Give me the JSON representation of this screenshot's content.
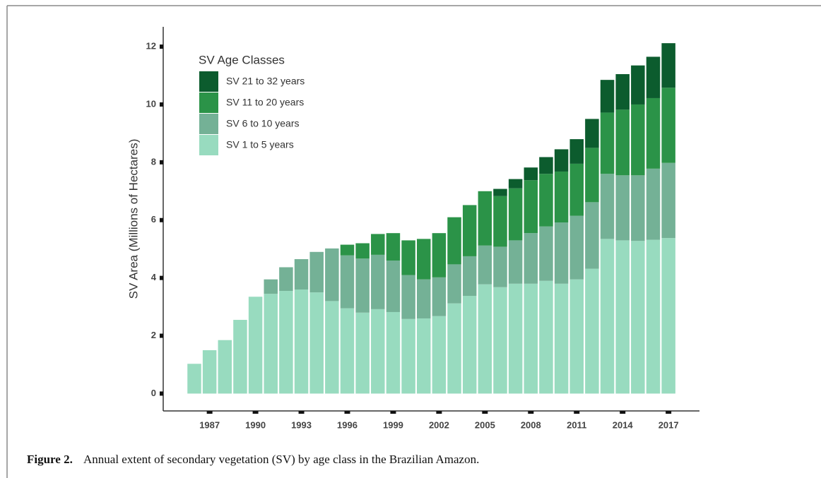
{
  "chart_data": {
    "type": "stacked_bar",
    "y_label": "SV Area (Millions of Hectares)",
    "legend_title": "SV Age Classes",
    "categories": [
      null,
      "1987",
      null,
      null,
      "1990",
      null,
      null,
      "1993",
      null,
      null,
      "1996",
      null,
      null,
      "1999",
      null,
      null,
      "2002",
      null,
      null,
      "2005",
      null,
      null,
      "2008",
      null,
      null,
      "2011",
      null,
      null,
      "2014",
      null,
      null,
      "2017"
    ],
    "series": [
      {
        "name": "SV 1 to 5 years",
        "color": "#98dbbf",
        "values": [
          1.03,
          1.5,
          1.85,
          2.55,
          3.35,
          3.45,
          3.55,
          3.6,
          3.5,
          3.2,
          2.95,
          2.8,
          2.92,
          2.82,
          2.58,
          2.6,
          2.68,
          3.12,
          3.38,
          3.78,
          3.68,
          3.8,
          3.8,
          3.9,
          3.8,
          3.95,
          4.32,
          5.35,
          5.3,
          5.28,
          5.32,
          5.38
        ]
      },
      {
        "name": "SV 6 to 10 years",
        "color": "#74b196",
        "values": [
          null,
          null,
          null,
          null,
          null,
          0.5,
          0.82,
          1.05,
          1.4,
          1.82,
          1.83,
          1.87,
          1.88,
          1.78,
          1.52,
          1.35,
          1.34,
          1.35,
          1.37,
          1.34,
          1.4,
          1.5,
          1.75,
          1.88,
          2.12,
          2.2,
          2.3,
          2.25,
          2.25,
          2.27,
          2.46,
          2.6
        ]
      },
      {
        "name": "SV 11 to 20 years",
        "color": "#2b9348",
        "values": [
          null,
          null,
          null,
          null,
          null,
          null,
          null,
          null,
          null,
          null,
          0.37,
          0.53,
          0.72,
          0.95,
          1.2,
          1.4,
          1.53,
          1.63,
          1.77,
          1.88,
          1.75,
          1.8,
          1.83,
          1.82,
          1.76,
          1.8,
          1.88,
          2.12,
          2.27,
          2.45,
          2.44,
          2.6
        ]
      },
      {
        "name": "SV 21 to 32 years",
        "color": "#0c5c2e",
        "values": [
          null,
          null,
          null,
          null,
          null,
          null,
          null,
          null,
          null,
          null,
          null,
          null,
          null,
          null,
          null,
          null,
          null,
          null,
          null,
          null,
          0.25,
          0.32,
          0.44,
          0.58,
          0.77,
          0.85,
          1.0,
          1.13,
          1.23,
          1.35,
          1.43,
          1.54
        ]
      }
    ],
    "ylim": [
      -0.6,
      12.6
    ],
    "yticks": [
      0,
      2,
      4,
      6,
      8,
      10,
      12
    ],
    "caption_label": "Figure 2.",
    "caption_text": "Annual extent of secondary vegetation (SV) by age class in the Brazilian Amazon."
  }
}
